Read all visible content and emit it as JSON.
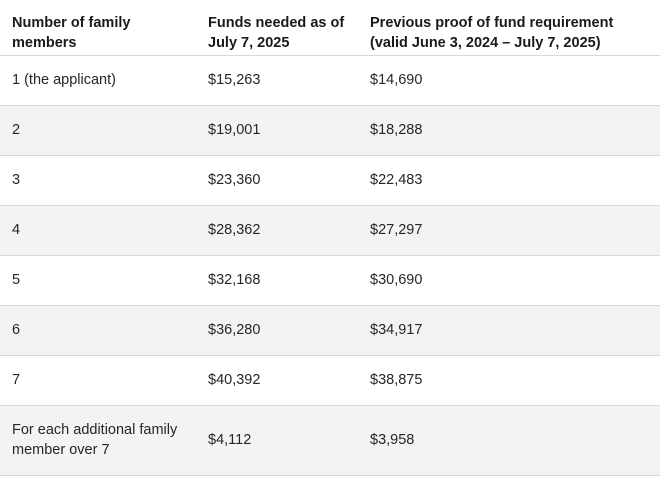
{
  "table": {
    "headers": [
      "Number of family members",
      "Funds needed as of July 7, 2025",
      "Previous proof of fund requirement (valid June 3, 2024 – July 7, 2025)"
    ],
    "rows": [
      [
        "1 (the applicant)",
        "$15,263",
        "$14,690"
      ],
      [
        "2",
        "$19,001",
        "$18,288"
      ],
      [
        "3",
        "$23,360",
        "$22,483"
      ],
      [
        "4",
        "$28,362",
        "$27,297"
      ],
      [
        "5",
        "$32,168",
        "$30,690"
      ],
      [
        "6",
        "$36,280",
        "$34,917"
      ],
      [
        "7",
        "$40,392",
        "$38,875"
      ],
      [
        "For each additional family member over 7",
        "$4,112",
        "$3,958"
      ]
    ]
  }
}
